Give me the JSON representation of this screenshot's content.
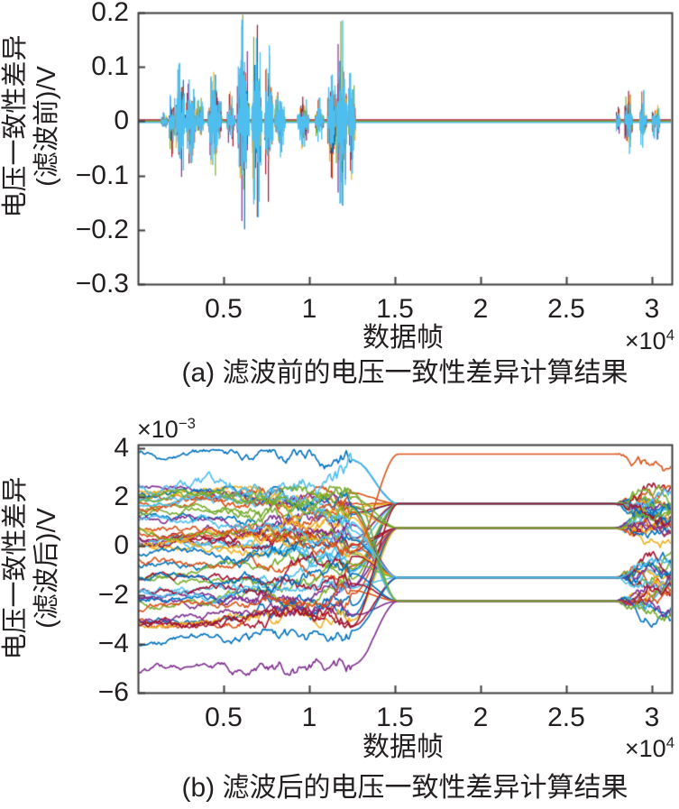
{
  "figure": {
    "background": "#ffffff",
    "palette": {
      "series_order": [
        "#0072BD",
        "#D95319",
        "#EDB120",
        "#7E2F8E",
        "#77AC30",
        "#4DBEEE",
        "#A2142F"
      ],
      "axis": "#3d3d3d",
      "text": "#231f20"
    }
  },
  "chart_data": [
    {
      "type": "line",
      "panel": "a",
      "caption": "(a) 滤波前的电压一致性差异计算结果",
      "xlabel": "数据帧",
      "ylabel_lines": [
        "电压一致性差异",
        "(滤波前)/V"
      ],
      "x_multiplier": {
        "base": "×10",
        "exp": "4"
      },
      "xlim": [
        0,
        3.116
      ],
      "ylim": [
        -0.3,
        0.2
      ],
      "xticks": {
        "values": [
          0.5,
          1,
          1.5,
          2,
          2.5,
          3
        ],
        "labels": [
          "0.5",
          "1",
          "1.5",
          "2",
          "2.5",
          "3"
        ]
      },
      "yticks": {
        "values": [
          0.2,
          0.1,
          0,
          -0.1,
          -0.2,
          -0.3
        ],
        "labels": [
          "0.2",
          "0.1",
          "0",
          "−0.1",
          "−0.2",
          "−0.3"
        ]
      },
      "description": "Many overlapped cell voltage-consistency-difference traces before filtering: spiky noise bursts around 0 V between frames ~0.15e4 and ~1.27e4, quiet from ~1.3e4 to ~2.78e4, small bursts ~2.8e4–3.05e4",
      "baseline_value": 0,
      "baseline_stack_colors": [
        "#A2142F",
        "#77AC30",
        "#4DBEEE"
      ],
      "spike_layer_colors": [
        "#0072BD",
        "#EDB120",
        "#7E2F8E",
        "#77AC30",
        "#A2142F",
        "#D95319"
      ],
      "core_color": "#4DBEEE",
      "bursts": [
        {
          "x": 0.15,
          "w": 0.04,
          "amp": 0.018
        },
        {
          "x": 0.197,
          "w": 0.045,
          "amp": 0.068
        },
        {
          "x": 0.245,
          "w": 0.06,
          "amp": 0.125
        },
        {
          "x": 0.305,
          "w": 0.06,
          "amp": 0.085
        },
        {
          "x": 0.36,
          "w": 0.05,
          "amp": 0.055
        },
        {
          "x": 0.445,
          "w": 0.085,
          "amp": 0.105
        },
        {
          "x": 0.54,
          "w": 0.05,
          "amp": 0.06
        },
        {
          "x": 0.61,
          "w": 0.075,
          "amp": 0.215
        },
        {
          "x": 0.69,
          "w": 0.065,
          "amp": 0.2
        },
        {
          "x": 0.76,
          "w": 0.055,
          "amp": 0.15
        },
        {
          "x": 0.825,
          "w": 0.065,
          "amp": 0.07
        },
        {
          "x": 0.96,
          "w": 0.075,
          "amp": 0.055
        },
        {
          "x": 1.055,
          "w": 0.055,
          "amp": 0.045
        },
        {
          "x": 1.13,
          "w": 0.06,
          "amp": 0.11
        },
        {
          "x": 1.185,
          "w": 0.07,
          "amp": 0.2
        },
        {
          "x": 1.245,
          "w": 0.045,
          "amp": 0.12
        },
        {
          "x": 2.8,
          "w": 0.03,
          "amp": 0.03
        },
        {
          "x": 2.86,
          "w": 0.05,
          "amp": 0.068
        },
        {
          "x": 2.945,
          "w": 0.045,
          "amp": 0.06
        },
        {
          "x": 3.02,
          "w": 0.05,
          "amp": 0.042
        }
      ]
    },
    {
      "type": "line",
      "panel": "b",
      "caption": "(b) 滤波后的电压一致性差异计算结果",
      "xlabel": "数据帧",
      "ylabel_lines": [
        "电压一致性差异",
        "(滤波后)/V"
      ],
      "x_multiplier": {
        "base": "×10",
        "exp": "4"
      },
      "y_multiplier": {
        "base": "×10",
        "exp": "−3"
      },
      "xlim": [
        0,
        3.116
      ],
      "ylim": [
        -6,
        4.15
      ],
      "xticks": {
        "values": [
          0.5,
          1,
          1.5,
          2,
          2.5,
          3
        ],
        "labels": [
          "0.5",
          "1",
          "1.5",
          "2",
          "2.5",
          "3"
        ]
      },
      "yticks": {
        "values": [
          4,
          2,
          0,
          -2,
          -4,
          -6
        ],
        "labels": [
          "4",
          "2",
          "0",
          "−2",
          "−4",
          "−6"
        ]
      },
      "description": "Filtered voltage-consistency differences (×10⁻³ V): ~50 noisy traces between about −5.3e-3 and 3.9e-3 until ~1.25e4 frames, converging to 5 flat levels until ~2.78e4 frames, then spreading into noise again",
      "rendered_series": 52,
      "noise_region": [
        0,
        1.25
      ],
      "converge_region": [
        1.25,
        1.52
      ],
      "flat_region": [
        1.52,
        2.78
      ],
      "fan_region": [
        2.78,
        3.116
      ],
      "flat_levels": [
        3.76,
        1.73,
        0.74,
        -1.29,
        -2.25
      ],
      "flat_level_colors": [
        "#D95319",
        "#A2142F",
        "#77AC30",
        "#4DBEEE",
        "#77AC30"
      ],
      "noise_band": [
        -3.35,
        2.45
      ],
      "generic_level_counts": [
        0,
        12,
        13,
        10,
        9
      ],
      "outlier_traces": [
        {
          "start": 3.9,
          "drift_to": 2.9,
          "level_index": 1,
          "color": "#0072BD",
          "clamp": [
            1.6,
            3.95
          ]
        },
        {
          "start": 2.6,
          "drift_to": 3.1,
          "level_index": 1,
          "color": "#4DBEEE",
          "clamp": [
            2.1,
            3.95
          ],
          "turbulence": 1.6
        },
        {
          "start": -5.25,
          "drift_to": -4.5,
          "level_index": 4,
          "color": "#7E2F8E",
          "clamp": [
            -5.45,
            -3.8
          ],
          "fan_bias": -0.012,
          "fan_clamp": [
            -4.45,
            -1.0
          ]
        },
        {
          "start": -4.05,
          "drift_to": -3.8,
          "level_index": 3,
          "color": "#0072BD",
          "clamp": [
            -4.3,
            -3.4
          ]
        },
        {
          "start": 0.6,
          "drift_to": 1.2,
          "level_index": 0,
          "color": "#D95319",
          "fan_bias": -0.02,
          "fan_clamp": [
            2.35,
            3.78
          ]
        }
      ]
    }
  ]
}
